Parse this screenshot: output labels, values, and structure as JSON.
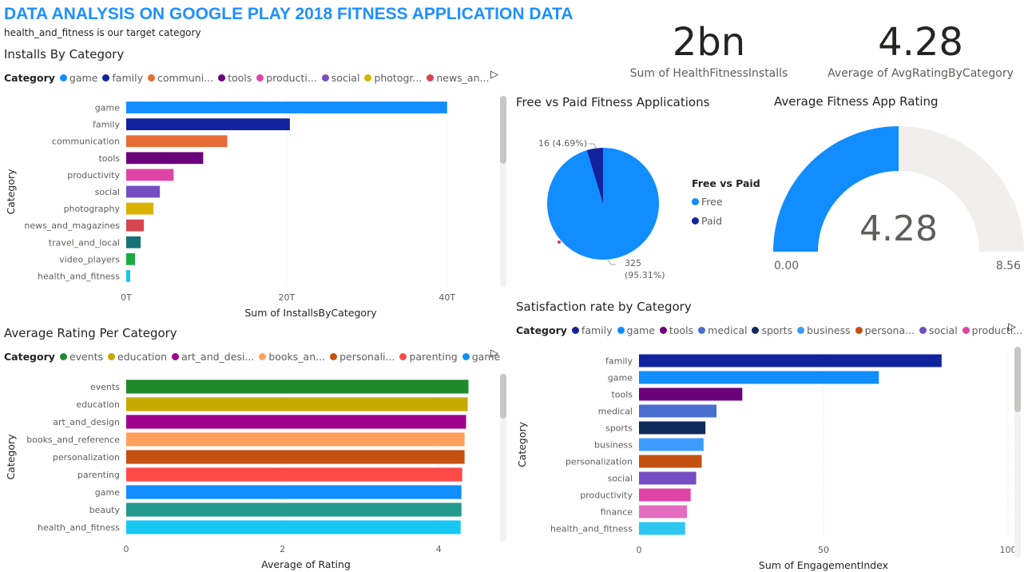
{
  "report": {
    "title": "DATA ANALYSIS ON GOOGLE PLAY 2018 FITNESS APPLICATION DATA",
    "subtitle": "health_and_fitness is our target category"
  },
  "cards": [
    {
      "value": "2bn",
      "label": "Sum of HealthFitnessInstalls"
    },
    {
      "value": "4.28",
      "label": "Average of AvgRatingByCategory"
    }
  ],
  "colors": {
    "accent": "#1e90ff",
    "free": "#118dff",
    "paid": "#12239e",
    "gauge_fill": "#118dff",
    "gauge_track": "#f0efee"
  },
  "legend_arrow": "▷",
  "chart_data": [
    {
      "id": "installs",
      "type": "bar",
      "orientation": "horizontal",
      "title": "Installs By Category",
      "legend_title": "Category",
      "legend": [
        "game",
        "family",
        "communi...",
        "tools",
        "producti...",
        "social",
        "photogr...",
        "news_an..."
      ],
      "categories": [
        "game",
        "family",
        "communication",
        "tools",
        "productivity",
        "social",
        "photography",
        "news_and_magazines",
        "travel_and_local",
        "video_players",
        "health_and_fitness"
      ],
      "values": [
        40,
        20.4,
        12.6,
        9.6,
        5.9,
        4.2,
        3.4,
        2.2,
        1.8,
        1.1,
        0.5
      ],
      "value_unit": "T",
      "colors": [
        "#118dff",
        "#12239e",
        "#e66c37",
        "#6b007b",
        "#e044a7",
        "#744ec2",
        "#d9b300",
        "#d64550",
        "#197278",
        "#1aab40",
        "#15c6f4"
      ],
      "xticks": [
        "0T",
        "20T",
        "40T"
      ],
      "xlim": [
        0,
        46
      ],
      "xlabel": "Sum of InstallsByCategory",
      "ylabel": "Category"
    },
    {
      "id": "rating",
      "type": "bar",
      "orientation": "horizontal",
      "title": "Average Rating Per Category",
      "legend_title": "Category",
      "legend": [
        "events",
        "education",
        "art_and_desi...",
        "books_an...",
        "personali...",
        "parenting",
        "game"
      ],
      "categories": [
        "events",
        "education",
        "art_and_design",
        "books_and_reference",
        "personalization",
        "parenting",
        "game",
        "beauty",
        "health_and_fitness"
      ],
      "values": [
        4.38,
        4.37,
        4.35,
        4.33,
        4.33,
        4.3,
        4.29,
        4.29,
        4.28
      ],
      "colors": [
        "#1f8a2c",
        "#c6a900",
        "#a0008e",
        "#ffa15c",
        "#c4510f",
        "#ff4a4a",
        "#118dff",
        "#22998b",
        "#18c8f2"
      ],
      "xticks": [
        "0",
        "2",
        "4"
      ],
      "xlim": [
        0,
        4.6
      ],
      "xlabel": "Average of Rating",
      "ylabel": "Category"
    },
    {
      "id": "pie",
      "type": "pie",
      "title": "Free vs Paid Fitness Applications",
      "legend_title": "Free vs Paid",
      "labels": [
        "Free",
        "Paid"
      ],
      "values": [
        325,
        16
      ],
      "data_labels": [
        "325\n(95.31%)",
        "16 (4.69%)"
      ],
      "colors": [
        "#118dff",
        "#12239e"
      ]
    },
    {
      "id": "gauge",
      "type": "gauge",
      "title": "Average Fitness App Rating",
      "value": 4.28,
      "value_label": "4.28",
      "min": 0,
      "max": 8.56,
      "min_label": "0.00",
      "max_label": "8.56"
    },
    {
      "id": "satisfaction",
      "type": "bar",
      "orientation": "horizontal",
      "title": "Satisfaction rate by Category",
      "legend_title": "Category",
      "legend": [
        "family",
        "game",
        "tools",
        "medical",
        "sports",
        "business",
        "persona...",
        "social",
        "producti..."
      ],
      "categories": [
        "family",
        "game",
        "tools",
        "medical",
        "sports",
        "business",
        "personalization",
        "social",
        "productivity",
        "finance",
        "health_and_fitness"
      ],
      "values": [
        82,
        65,
        28,
        21,
        18,
        17.5,
        17,
        15.5,
        14,
        13,
        12.5
      ],
      "colors": [
        "#12239e",
        "#118dff",
        "#6b007b",
        "#4a6fd0",
        "#0f2a5a",
        "#3d9bff",
        "#c4510f",
        "#744ec2",
        "#e044a7",
        "#e66cc0",
        "#2ec7f2"
      ],
      "xticks": [
        "0",
        "50",
        "100"
      ],
      "xlim": [
        0,
        100
      ],
      "xlabel": "Sum of EngagementIndex",
      "ylabel": "Category"
    }
  ]
}
